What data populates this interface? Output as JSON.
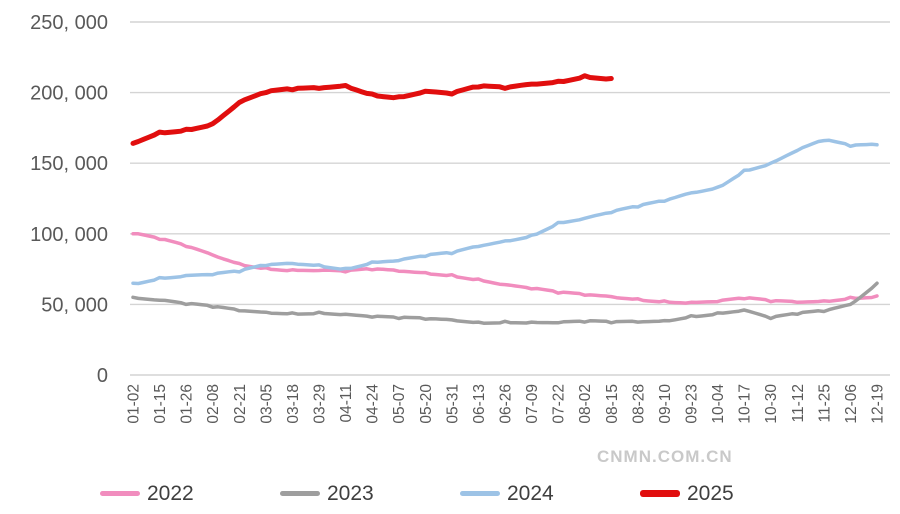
{
  "watermark": "CNMN.COM.CN",
  "chart_data": {
    "type": "line",
    "title": "",
    "xlabel": "",
    "ylabel": "",
    "grid": true,
    "legend_position": "bottom",
    "ylim": [
      0,
      250000
    ],
    "y_ticks": [
      {
        "value": 0,
        "label": "0"
      },
      {
        "value": 50000,
        "label": "50, 000"
      },
      {
        "value": 100000,
        "label": "100, 000"
      },
      {
        "value": 150000,
        "label": "150, 000"
      },
      {
        "value": 200000,
        "label": "200, 000"
      },
      {
        "value": 250000,
        "label": "250, 000"
      }
    ],
    "x_labels": [
      "01-02",
      "01-15",
      "01-26",
      "02-08",
      "02-21",
      "03-05",
      "03-18",
      "03-29",
      "04-11",
      "04-24",
      "05-07",
      "05-20",
      "05-31",
      "06-13",
      "06-26",
      "07-09",
      "07-22",
      "08-02",
      "08-15",
      "08-28",
      "09-10",
      "09-23",
      "10-04",
      "10-17",
      "10-30",
      "11-12",
      "11-25",
      "12-06",
      "12-19"
    ],
    "series": [
      {
        "name": "2022",
        "color": "#F18DBE",
        "line_width": 3.5,
        "values": [
          100000,
          96000,
          91000,
          85000,
          79000,
          76000,
          74500,
          74000,
          73000,
          74500,
          73500,
          72500,
          71000,
          68000,
          64000,
          61000,
          58000,
          56500,
          55500,
          54000,
          52500,
          51500,
          52000,
          54000,
          52000,
          51500,
          52500,
          55000,
          56000
        ]
      },
      {
        "name": "2023",
        "color": "#9E9E9E",
        "line_width": 3.5,
        "values": [
          55000,
          53000,
          50000,
          48000,
          45500,
          44500,
          44000,
          44500,
          43000,
          41000,
          40000,
          39500,
          39000,
          37500,
          38000,
          37500,
          37000,
          37500,
          37000,
          37500,
          38500,
          42000,
          44000,
          46000,
          40000,
          43000,
          45000,
          50000,
          65000
        ]
      },
      {
        "name": "2024",
        "color": "#9DC3E6",
        "line_width": 3.5,
        "values": [
          65000,
          69000,
          70500,
          71000,
          73000,
          77500,
          79000,
          78000,
          75500,
          80000,
          81000,
          84000,
          86000,
          91000,
          95000,
          99000,
          108000,
          111000,
          115000,
          119000,
          123000,
          129000,
          133000,
          145000,
          150000,
          159000,
          166000,
          162000,
          163000
        ]
      },
      {
        "name": "2025",
        "color": "#E10E0E",
        "line_width": 5,
        "values": [
          164000,
          172000,
          174000,
          178000,
          193000,
          200000,
          202000,
          203000,
          205000,
          199000,
          197000,
          201000,
          199000,
          204000,
          203000,
          206000,
          208000,
          212000,
          210000,
          null,
          null,
          null,
          null,
          null,
          null,
          null,
          null,
          null,
          null
        ]
      }
    ]
  }
}
